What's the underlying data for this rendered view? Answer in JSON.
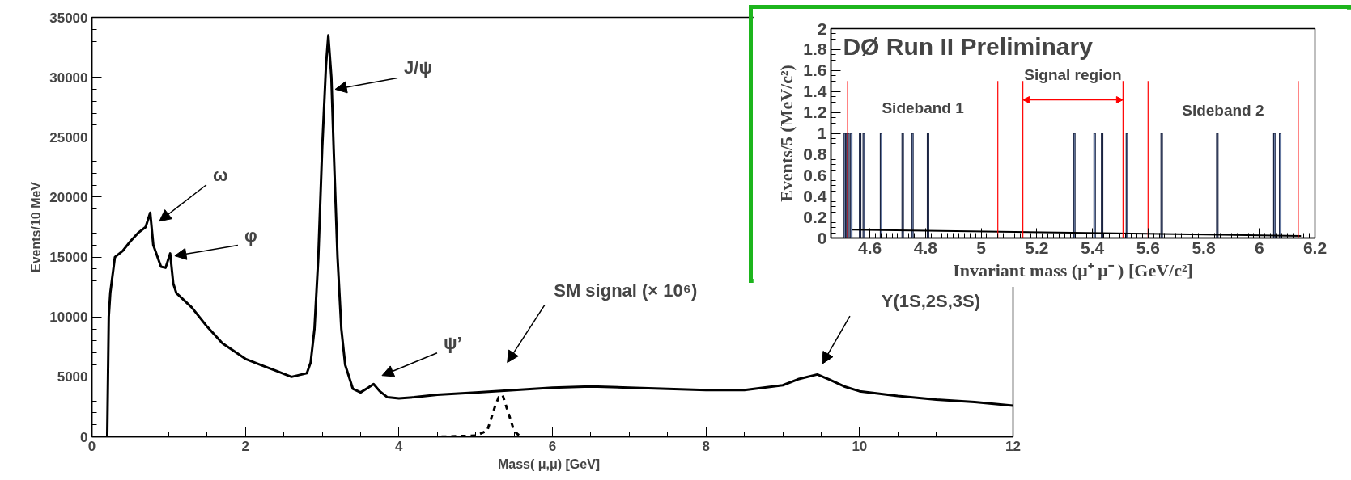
{
  "chart_data": [
    {
      "type": "line",
      "xlabel": "Mass( μ,μ)   [GeV]",
      "ylabel": "Events/10 MeV",
      "xlim": [
        0,
        12
      ],
      "ylim": [
        0,
        35000
      ],
      "xticks": [
        0,
        2,
        4,
        6,
        8,
        10,
        12
      ],
      "yticks": [
        0,
        5000,
        10000,
        15000,
        20000,
        25000,
        30000,
        35000
      ],
      "grid": false,
      "series": [
        {
          "color": "#000000",
          "line_style": "solid",
          "x": [
            0,
            0.2,
            0.21,
            0.22,
            0.24,
            0.3,
            0.4,
            0.5,
            0.6,
            0.7,
            0.76,
            0.8,
            0.9,
            0.96,
            1.02,
            1.06,
            1.1,
            1.3,
            1.5,
            1.7,
            2.0,
            2.2,
            2.4,
            2.6,
            2.8,
            2.85,
            2.9,
            2.95,
            3.0,
            3.05,
            3.08,
            3.12,
            3.15,
            3.2,
            3.25,
            3.3,
            3.4,
            3.5,
            3.6,
            3.67,
            3.75,
            3.85,
            4.0,
            4.2,
            4.5,
            5.0,
            5.5,
            6.0,
            6.5,
            7.0,
            7.5,
            8.0,
            8.5,
            9.0,
            9.2,
            9.45,
            9.6,
            9.8,
            10.0,
            10.5,
            11.0,
            11.5,
            12.0
          ],
          "values": [
            0,
            0,
            5000,
            10000,
            12000,
            15000,
            15500,
            16300,
            17000,
            17500,
            18700,
            16000,
            14200,
            14100,
            15300,
            12800,
            12000,
            10800,
            9200,
            7800,
            6500,
            6000,
            5500,
            5000,
            5300,
            6200,
            9000,
            15000,
            24000,
            31000,
            33500,
            30000,
            24000,
            15000,
            9000,
            6000,
            4000,
            3700,
            4100,
            4400,
            3800,
            3300,
            3200,
            3300,
            3500,
            3700,
            3900,
            4100,
            4200,
            4100,
            4000,
            3900,
            3900,
            4300,
            4800,
            5200,
            4800,
            4200,
            3800,
            3400,
            3100,
            2900,
            2600
          ]
        },
        {
          "color": "#000000",
          "line_style": "dashed",
          "x": [
            0,
            4.5,
            5.0,
            5.15,
            5.2,
            5.25,
            5.3,
            5.35,
            5.4,
            5.45,
            5.5,
            5.55,
            5.6,
            6.0,
            12.0
          ],
          "values": [
            0,
            0,
            100,
            500,
            1500,
            2500,
            3300,
            3500,
            2500,
            1500,
            500,
            200,
            0,
            0,
            0
          ]
        }
      ],
      "annotations": [
        "ω",
        {
          "text": "φ",
          "x": 1.08,
          "y": 15100
        },
        {
          "text": "J/ψ",
          "x": 3.17,
          "y": 29000
        },
        "ψ’",
        "SM signal (× 10⁶)",
        "Υ(1S,2S,3S)"
      ]
    },
    {
      "type": "bar",
      "title": "DØ Run II Preliminary",
      "xlabel": "Invariant mass (μ⁺ μ⁻ ) [GeV/c²]",
      "ylabel": "Events/5 (MeV/c²)",
      "xlim": [
        4.46,
        6.2
      ],
      "ylim": [
        0,
        2
      ],
      "xticks": [
        4.6,
        4.8,
        5,
        5.2,
        5.4,
        5.6,
        5.8,
        6,
        6.2
      ],
      "yticks": [
        0,
        0.2,
        0.4,
        0.6,
        0.8,
        1,
        1.2,
        1.4,
        1.6,
        1.8,
        2
      ],
      "grid": false,
      "series": [
        {
          "type": "bar",
          "color": "#9fb8e6",
          "x": [
            4.51,
            4.517,
            4.523,
            4.533,
            4.565,
            4.578,
            4.64,
            4.718,
            4.753,
            4.809,
            5.335,
            5.408,
            5.435,
            5.524,
            5.649,
            5.849,
            6.054,
            6.075
          ],
          "values": [
            1,
            1,
            1,
            1,
            1,
            1,
            1,
            1,
            1,
            1,
            1,
            1,
            1,
            1,
            1,
            1,
            1,
            1
          ]
        },
        {
          "type": "line",
          "color": "#000000",
          "x": [
            4.535,
            6.15
          ],
          "values": [
            0.08,
            0.02
          ]
        }
      ],
      "ref_lines": [
        {
          "axis": "x",
          "value": 4.52,
          "color": "#ff0000"
        },
        {
          "axis": "x",
          "value": 5.06,
          "color": "#ff0000"
        },
        {
          "axis": "x",
          "value": 5.15,
          "color": "#ff0000"
        },
        {
          "axis": "x",
          "value": 5.51,
          "color": "#ff0000"
        },
        {
          "axis": "x",
          "value": 5.6,
          "color": "#ff0000"
        },
        {
          "axis": "x",
          "value": 6.14,
          "color": "#ff0000"
        }
      ],
      "annotations": [
        "Sideband 1",
        "Signal region",
        "Sideband 2"
      ]
    }
  ]
}
